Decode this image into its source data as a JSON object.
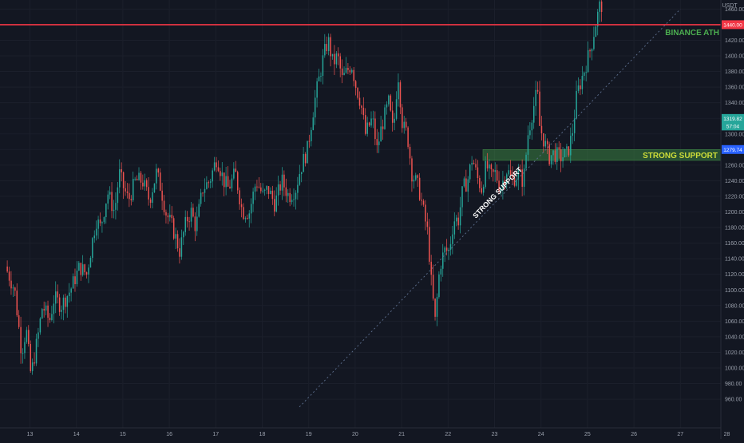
{
  "chart_data": {
    "type": "candlestick",
    "currency_label": "USDT",
    "y_range": [
      950,
      1480
    ],
    "y_ticks": [
      1460,
      1440,
      1420,
      1400,
      1380,
      1360,
      1340,
      1320,
      1300,
      1280,
      1260,
      1240,
      1220,
      1200,
      1180,
      1160,
      1140,
      1120,
      1100,
      1080,
      1060,
      1040,
      1020,
      1000,
      980,
      960
    ],
    "x_ticks": [
      "13",
      "14",
      "15",
      "16",
      "17",
      "18",
      "19",
      "20",
      "21",
      "22",
      "23",
      "24",
      "25",
      "26",
      "27",
      "28"
    ],
    "up_color": "#26a69a",
    "down_color": "#ef5350",
    "price_path": [
      [
        12.5,
        1130
      ],
      [
        12.7,
        1100
      ],
      [
        12.85,
        1020
      ],
      [
        12.95,
        1050
      ],
      [
        13.05,
        990
      ],
      [
        13.2,
        1040
      ],
      [
        13.3,
        1080
      ],
      [
        13.45,
        1060
      ],
      [
        13.55,
        1090
      ],
      [
        13.7,
        1080
      ],
      [
        13.9,
        1100
      ],
      [
        14.1,
        1130
      ],
      [
        14.25,
        1120
      ],
      [
        14.45,
        1190
      ],
      [
        14.55,
        1180
      ],
      [
        14.7,
        1225
      ],
      [
        14.85,
        1200
      ],
      [
        14.95,
        1250
      ],
      [
        15.05,
        1230
      ],
      [
        15.15,
        1215
      ],
      [
        15.3,
        1240
      ],
      [
        15.45,
        1240
      ],
      [
        15.6,
        1215
      ],
      [
        15.75,
        1250
      ],
      [
        15.85,
        1230
      ],
      [
        15.95,
        1200
      ],
      [
        16.1,
        1180
      ],
      [
        16.25,
        1150
      ],
      [
        16.4,
        1190
      ],
      [
        16.5,
        1200
      ],
      [
        16.6,
        1180
      ],
      [
        16.75,
        1230
      ],
      [
        16.9,
        1240
      ],
      [
        17.05,
        1270
      ],
      [
        17.2,
        1240
      ],
      [
        17.3,
        1230
      ],
      [
        17.45,
        1250
      ],
      [
        17.6,
        1200
      ],
      [
        17.75,
        1200
      ],
      [
        17.9,
        1240
      ],
      [
        18.05,
        1220
      ],
      [
        18.15,
        1230
      ],
      [
        18.3,
        1210
      ],
      [
        18.45,
        1240
      ],
      [
        18.6,
        1220
      ],
      [
        18.75,
        1230
      ],
      [
        18.85,
        1255
      ],
      [
        19.0,
        1280
      ],
      [
        19.15,
        1340
      ],
      [
        19.25,
        1370
      ],
      [
        19.35,
        1400
      ],
      [
        19.45,
        1420
      ],
      [
        19.55,
        1390
      ],
      [
        19.65,
        1400
      ],
      [
        19.75,
        1370
      ],
      [
        19.85,
        1380
      ],
      [
        19.95,
        1390
      ],
      [
        20.05,
        1360
      ],
      [
        20.15,
        1340
      ],
      [
        20.25,
        1300
      ],
      [
        20.4,
        1320
      ],
      [
        20.5,
        1280
      ],
      [
        20.6,
        1310
      ],
      [
        20.75,
        1340
      ],
      [
        20.85,
        1300
      ],
      [
        20.95,
        1380
      ],
      [
        21.05,
        1310
      ],
      [
        21.15,
        1300
      ],
      [
        21.25,
        1250
      ],
      [
        21.4,
        1230
      ],
      [
        21.5,
        1200
      ],
      [
        21.6,
        1170
      ],
      [
        21.65,
        1120
      ],
      [
        21.75,
        1060
      ],
      [
        21.85,
        1130
      ],
      [
        21.95,
        1150
      ],
      [
        22.05,
        1150
      ],
      [
        22.15,
        1190
      ],
      [
        22.25,
        1190
      ],
      [
        22.35,
        1230
      ],
      [
        22.45,
        1240
      ],
      [
        22.55,
        1270
      ],
      [
        22.65,
        1245
      ],
      [
        22.75,
        1230
      ],
      [
        22.85,
        1260
      ],
      [
        22.95,
        1245
      ],
      [
        23.05,
        1250
      ],
      [
        23.15,
        1230
      ],
      [
        23.3,
        1255
      ],
      [
        23.4,
        1240
      ],
      [
        23.55,
        1250
      ],
      [
        23.65,
        1238
      ],
      [
        23.75,
        1300
      ],
      [
        23.85,
        1330
      ],
      [
        23.95,
        1355
      ],
      [
        24.0,
        1310
      ],
      [
        24.1,
        1290
      ],
      [
        24.2,
        1270
      ],
      [
        24.3,
        1275
      ],
      [
        24.45,
        1270
      ],
      [
        24.6,
        1275
      ],
      [
        24.7,
        1300
      ],
      [
        24.8,
        1350
      ],
      [
        24.95,
        1380
      ],
      [
        25.1,
        1410
      ],
      [
        25.2,
        1440
      ],
      [
        25.3,
        1465
      ]
    ],
    "annotations": {
      "resistance": {
        "price": 1440,
        "label": "BINANCE ATH",
        "price_badge": "1440.00"
      },
      "support_zone": {
        "from_day": 22.75,
        "price_low": 1266,
        "price_high": 1280,
        "label": "STRONG SUPPORT",
        "price_badge": "1279.74"
      },
      "trendline": {
        "start": [
          18.8,
          950
        ],
        "end": [
          27.0,
          1460
        ],
        "label": "STRONG SUPPORT"
      },
      "current_price_badge": "1319.82",
      "countdown_badge": "57:04"
    }
  }
}
